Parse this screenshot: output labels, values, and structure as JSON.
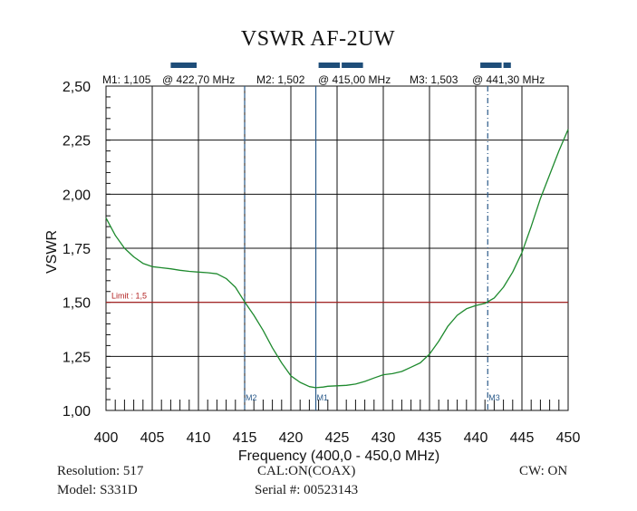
{
  "chart_data": {
    "type": "line",
    "title": "VSWR AF-2UW",
    "xlabel": "Frequency (400,0 - 450,0 MHz)",
    "ylabel": "VSWR",
    "xlim": [
      400,
      450
    ],
    "ylim": [
      1.0,
      2.5
    ],
    "x_ticks": [
      "400",
      "405",
      "410",
      "415",
      "420",
      "425",
      "430",
      "435",
      "440",
      "445",
      "450"
    ],
    "y_ticks": [
      "1,00",
      "1,25",
      "1,50",
      "1,75",
      "2,00",
      "2,25",
      "2,50"
    ],
    "grid": true,
    "limit": {
      "label": "Limit : 1,5",
      "value": 1.5,
      "color": "#b22222"
    },
    "series": [
      {
        "name": "VSWR",
        "color": "#1e8a2e",
        "x": [
          400,
          401,
          402,
          403,
          404,
          405,
          406,
          407,
          408,
          409,
          410,
          411,
          412,
          413,
          414,
          415,
          416,
          417,
          418,
          419,
          420,
          421,
          422,
          422.7,
          423.5,
          424,
          425,
          426,
          427,
          428,
          429,
          430,
          431,
          432,
          433,
          434,
          435,
          436,
          437,
          438,
          439,
          440,
          441,
          441.3,
          442,
          443,
          444,
          445,
          446,
          447,
          448,
          449,
          450
        ],
        "y": [
          1.89,
          1.81,
          1.75,
          1.71,
          1.68,
          1.665,
          1.66,
          1.655,
          1.648,
          1.643,
          1.64,
          1.637,
          1.632,
          1.61,
          1.57,
          1.502,
          1.44,
          1.37,
          1.29,
          1.22,
          1.16,
          1.13,
          1.11,
          1.105,
          1.108,
          1.112,
          1.114,
          1.116,
          1.122,
          1.134,
          1.15,
          1.165,
          1.17,
          1.18,
          1.2,
          1.22,
          1.26,
          1.32,
          1.39,
          1.44,
          1.47,
          1.485,
          1.495,
          1.503,
          1.52,
          1.57,
          1.64,
          1.73,
          1.85,
          1.98,
          2.09,
          2.2,
          2.3
        ]
      }
    ],
    "markers_readout": [
      {
        "name": "M1",
        "text": "M1: 1,105",
        "freq_text": "@ 422,70 MHz",
        "x": 422.7,
        "y": 1.105,
        "style": "solid"
      },
      {
        "name": "M2",
        "text": "M2: 1,502",
        "freq_text": "@ 415,00 MHz",
        "x": 415.0,
        "y": 1.502,
        "style": "dashed"
      },
      {
        "name": "M3",
        "text": "M3: 1,503",
        "freq_text": "@ 441,30 MHz",
        "x": 441.3,
        "y": 1.503,
        "style": "dashdot"
      }
    ],
    "band_bars": [
      {
        "from": 407,
        "to": 410
      },
      {
        "from": 423,
        "to": 425.5
      },
      {
        "from": 425.5,
        "to": 428
      },
      {
        "from": 440.5,
        "to": 443
      },
      {
        "from": 443,
        "to": 444
      }
    ],
    "colors": {
      "grid": "#111111",
      "marker": "#2a5a8a",
      "band_bar": "#1f4e79",
      "axis_text": "#111111"
    }
  },
  "footer": {
    "resolution": "Resolution:  517",
    "model": "Model: S331D",
    "cal": "CAL:ON(COAX)",
    "serial": "Serial #: 00523143",
    "cw": "CW: ON"
  }
}
